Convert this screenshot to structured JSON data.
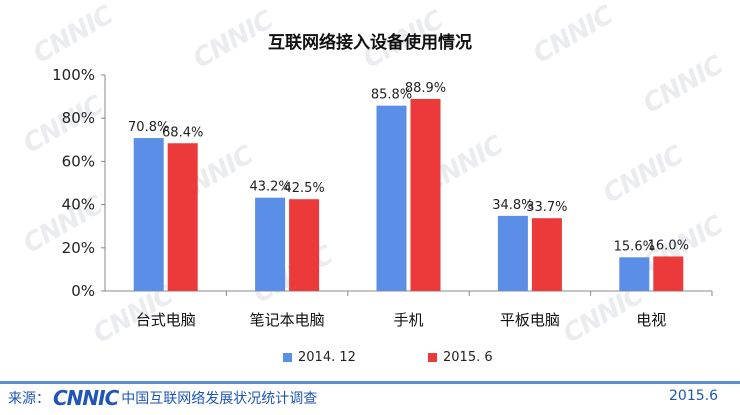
{
  "watermark": "CNNIC",
  "chart_data": {
    "type": "bar",
    "title": "互联网络接入设备使用情况",
    "categories": [
      "台式电脑",
      "笔记本电脑",
      "手机",
      "平板电脑",
      "电视"
    ],
    "series": [
      {
        "name": "2014. 12",
        "color": "#5b8ee6",
        "values": [
          70.8,
          43.2,
          85.8,
          34.8,
          15.6
        ],
        "labels": [
          "70.8%",
          "43.2%",
          "85.8%",
          "34.8%",
          "15.6%"
        ]
      },
      {
        "name": "2015. 6",
        "color": "#ec3a3a",
        "values": [
          68.4,
          42.5,
          88.9,
          33.7,
          16.0
        ],
        "labels": [
          "68.4%",
          "42.5%",
          "88.9%",
          "33.7%",
          "16.0%"
        ]
      }
    ],
    "yticks": [
      "0%",
      "20%",
      "40%",
      "60%",
      "80%",
      "100%"
    ],
    "ylim": [
      0,
      100
    ],
    "grid": false,
    "legend_position": "bottom"
  },
  "footer": {
    "source_label": "来源：",
    "logo_text": "CNNIC",
    "org_name": "中国互联网络发展状况统计调查",
    "date": "2015.6"
  }
}
